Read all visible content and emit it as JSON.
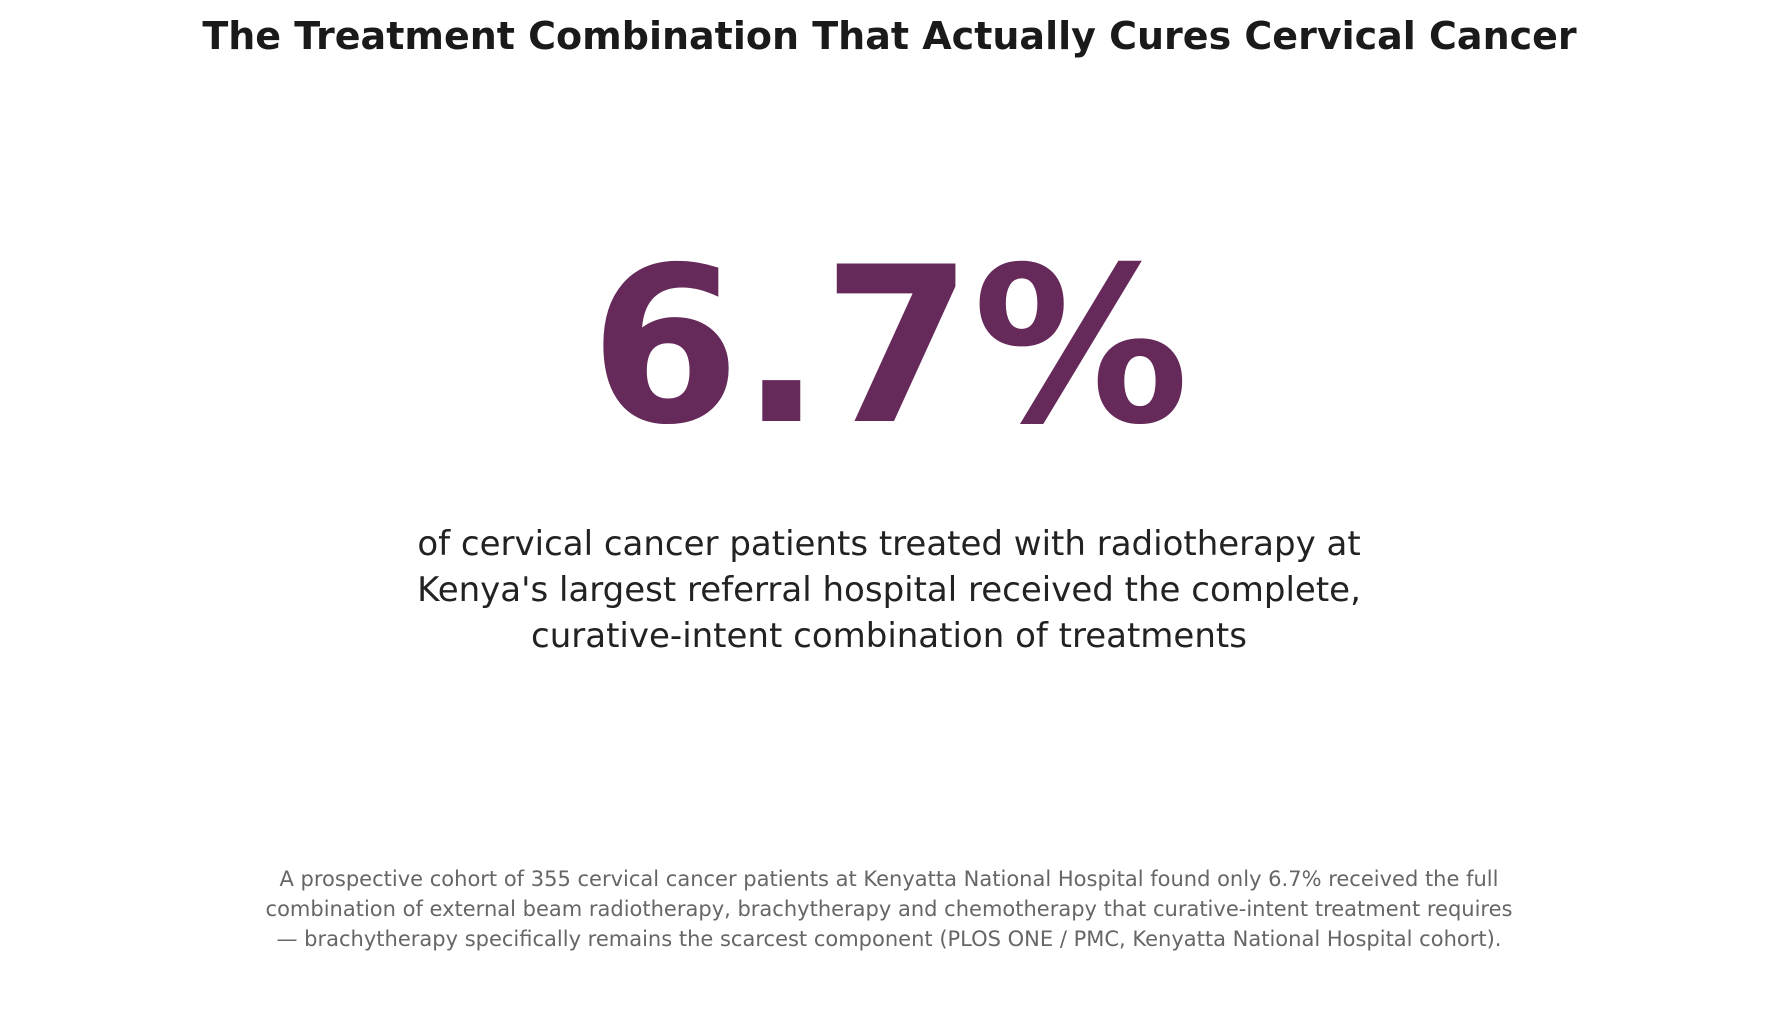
{
  "title": "The Treatment Combination That Actually Cures Cervical Cancer",
  "headline_stat": "6.7%",
  "caption_lines": [
    "of cervical cancer patients treated with radiotherapy at",
    "Kenya's largest referral hospital received the complete,",
    "curative-intent combination of treatments"
  ],
  "source_lines": [
    "A prospective cohort of 355 cervical cancer patients at Kenyatta National Hospital found only 6.7% received the full",
    "combination of external beam radiotherapy, brachytherapy and chemotherapy that curative-intent treatment requires",
    "— brachytherapy specifically remains the scarcest component (PLOS ONE / PMC, Kenyatta National Hospital cohort)."
  ],
  "colors": {
    "accent": "#662a5a",
    "title": "#1a1a1a",
    "caption": "#222222",
    "source": "#666666",
    "background": "#ffffff"
  }
}
